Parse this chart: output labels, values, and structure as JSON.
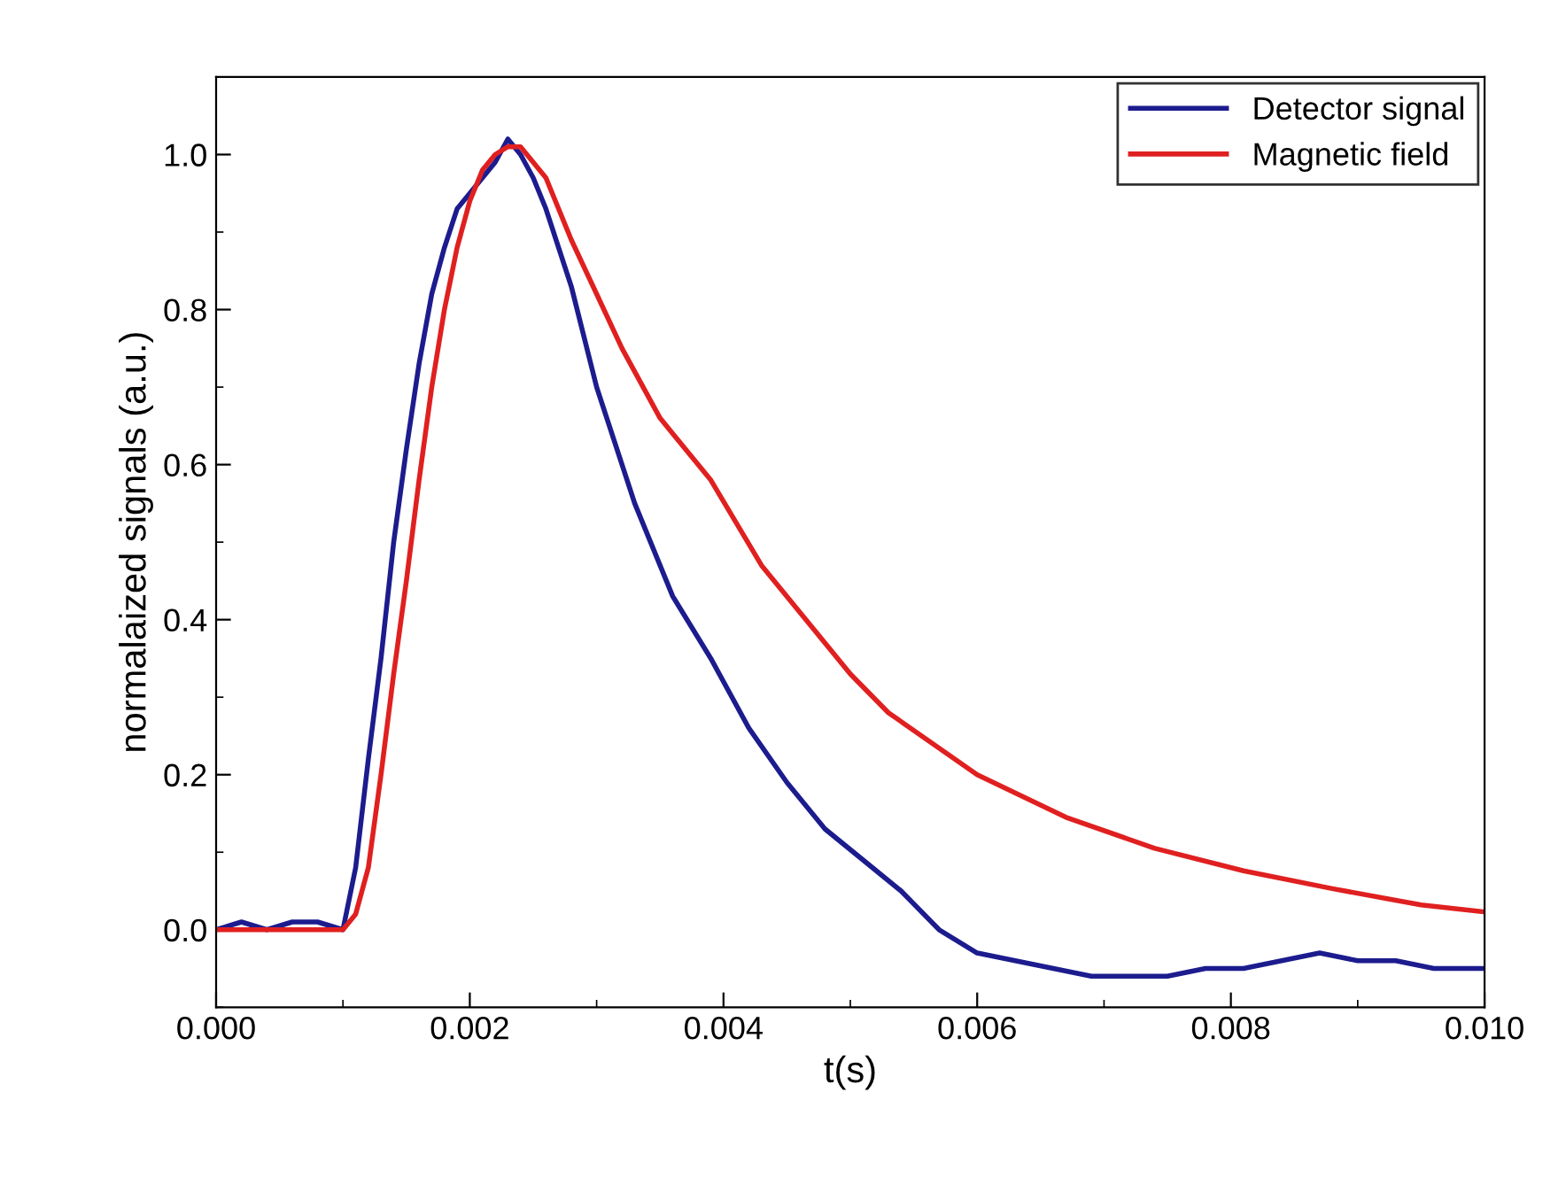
{
  "chart_data": {
    "type": "line",
    "xlabel": "t(s)",
    "ylabel": "normalaized signals (a.u.)",
    "xlim": [
      0,
      0.01
    ],
    "ylim": [
      -0.1,
      1.1
    ],
    "xticks": [
      {
        "value": 0,
        "label": "0.000"
      },
      {
        "value": 0.002,
        "label": "0.002"
      },
      {
        "value": 0.004,
        "label": "0.004"
      },
      {
        "value": 0.006,
        "label": "0.006"
      },
      {
        "value": 0.008,
        "label": "0.008"
      },
      {
        "value": 0.01,
        "label": "0.010"
      }
    ],
    "yticks": [
      {
        "value": 0,
        "label": "0.0"
      },
      {
        "value": 0.2,
        "label": "0.2"
      },
      {
        "value": 0.4,
        "label": "0.4"
      },
      {
        "value": 0.6,
        "label": "0.6"
      },
      {
        "value": 0.8,
        "label": "0.8"
      },
      {
        "value": 1,
        "label": "1.0"
      }
    ],
    "grid": false,
    "legend": "top right",
    "marker": "none",
    "line_style": "solid",
    "series": [
      {
        "name": "Detector signal",
        "color": "#1c1c8e",
        "x": [
          0,
          0.0002,
          0.0004,
          0.0006,
          0.0008,
          0.001,
          0.0011,
          0.0012,
          0.0013,
          0.0014,
          0.0015,
          0.0016,
          0.0017,
          0.0018,
          0.0019,
          0.002,
          0.0021,
          0.0022,
          0.0023,
          0.0024,
          0.0025,
          0.0026,
          0.0027,
          0.0028,
          0.003,
          0.0033,
          0.0036,
          0.0039,
          0.0042,
          0.0045,
          0.0048,
          0.0051,
          0.0054,
          0.0057,
          0.006,
          0.0063,
          0.0066,
          0.0069,
          0.0072,
          0.0075,
          0.0078,
          0.0081,
          0.0084,
          0.0087,
          0.009,
          0.0093,
          0.0096,
          0.01
        ],
        "values": [
          0.0,
          0.01,
          0.0,
          0.01,
          0.01,
          0.0,
          0.08,
          0.22,
          0.35,
          0.5,
          0.62,
          0.73,
          0.82,
          0.88,
          0.93,
          0.95,
          0.97,
          0.99,
          1.02,
          1.0,
          0.97,
          0.93,
          0.88,
          0.83,
          0.7,
          0.55,
          0.43,
          0.35,
          0.26,
          0.19,
          0.13,
          0.09,
          0.05,
          0.0,
          -0.03,
          -0.04,
          -0.05,
          -0.06,
          -0.06,
          -0.06,
          -0.05,
          -0.05,
          -0.04,
          -0.03,
          -0.04,
          -0.04,
          -0.05,
          -0.05
        ]
      },
      {
        "name": "Magnetic field",
        "color": "#e02020",
        "x": [
          0,
          0.0005,
          0.001,
          0.0011,
          0.0012,
          0.0013,
          0.0014,
          0.0015,
          0.0016,
          0.0017,
          0.0018,
          0.0019,
          0.002,
          0.0021,
          0.0022,
          0.0023,
          0.0024,
          0.0025,
          0.0026,
          0.0027,
          0.0028,
          0.003,
          0.0032,
          0.0035,
          0.0039,
          0.0043,
          0.0046,
          0.005,
          0.0053,
          0.006,
          0.0067,
          0.0074,
          0.0081,
          0.0088,
          0.0095,
          0.01
        ],
        "values": [
          0.0,
          0.0,
          0.0,
          0.02,
          0.08,
          0.2,
          0.33,
          0.45,
          0.58,
          0.7,
          0.8,
          0.88,
          0.94,
          0.98,
          1.0,
          1.01,
          1.01,
          0.99,
          0.97,
          0.93,
          0.89,
          0.82,
          0.75,
          0.66,
          0.58,
          0.47,
          0.41,
          0.33,
          0.28,
          0.2,
          0.145,
          0.105,
          0.076,
          0.053,
          0.032,
          0.023
        ]
      }
    ]
  }
}
